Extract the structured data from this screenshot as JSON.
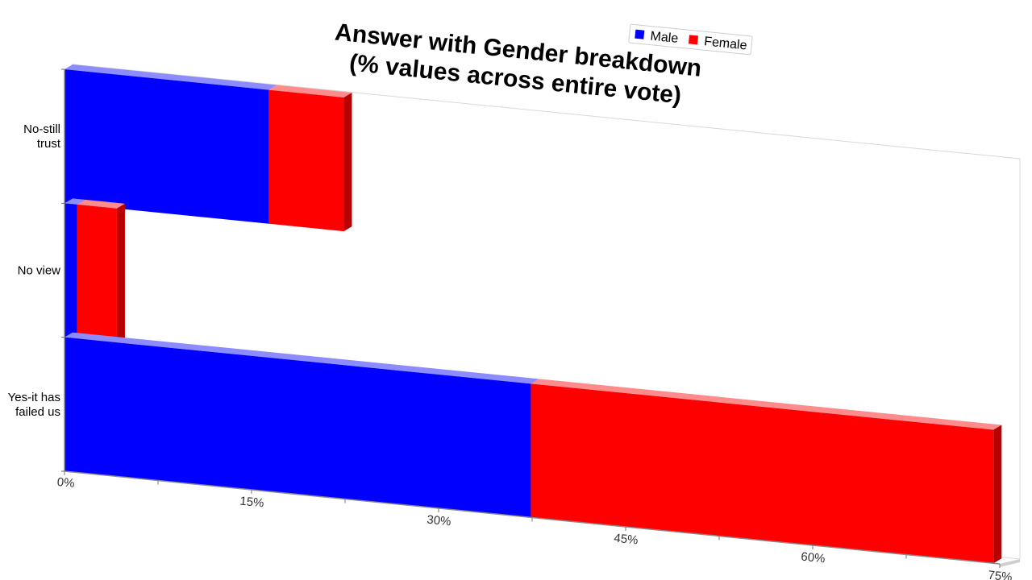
{
  "chart_data": {
    "type": "bar",
    "orientation": "horizontal",
    "stacked": true,
    "title": [
      "Answer with Gender breakdown",
      "(% values across entire vote)"
    ],
    "categories": [
      [
        "No-still",
        "trust"
      ],
      [
        "No view"
      ],
      [
        "Yes-it has",
        "failed us"
      ]
    ],
    "series": [
      {
        "name": "Male",
        "color": "#0000ff",
        "values": [
          16.4,
          1.0,
          37.4
        ]
      },
      {
        "name": "Female",
        "color": "#ff0000",
        "values": [
          6.0,
          3.2,
          37.1
        ]
      }
    ],
    "xlim": [
      0,
      75
    ],
    "xticks": [
      0,
      15,
      30,
      45,
      60,
      75
    ],
    "tick_suffix": "%",
    "legend_position": "top-right",
    "grid": false
  }
}
